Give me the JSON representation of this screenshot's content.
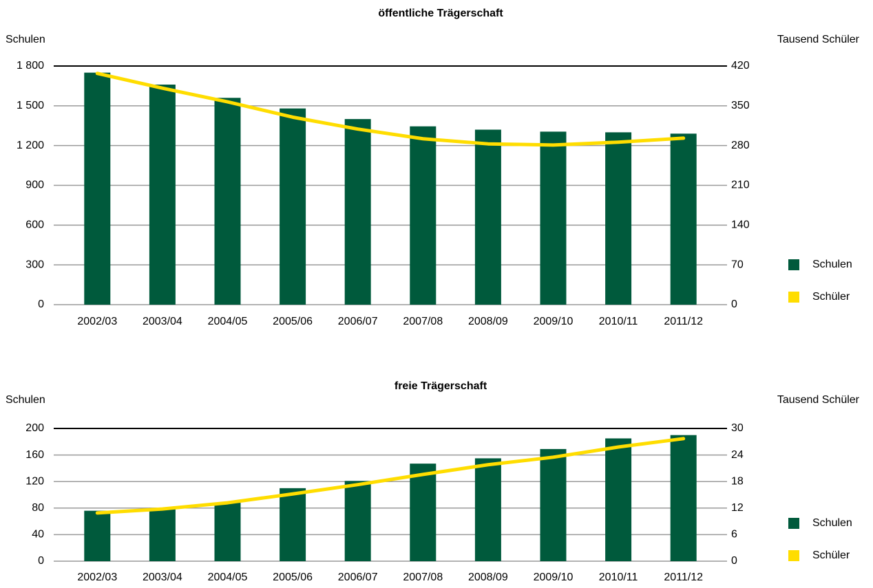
{
  "chart_data": [
    {
      "type": "bar",
      "title": "öffentliche Trägerschaft",
      "y_label": "Schulen",
      "y2_label": "Tausend Schüler",
      "categories": [
        "2002/03",
        "2003/04",
        "2004/05",
        "2005/06",
        "2006/07",
        "2007/08",
        "2008/09",
        "2009/10",
        "2010/11",
        "2011/12"
      ],
      "series": [
        {
          "name": "Schulen",
          "color": "#005a3c",
          "values": [
            1750,
            1660,
            1560,
            1480,
            1400,
            1345,
            1320,
            1305,
            1300,
            1290
          ]
        },
        {
          "name": "Schüler",
          "color": "#ffdd00",
          "axis": "y2",
          "values": [
            407,
            381,
            357,
            330,
            309,
            292,
            283,
            281,
            286,
            293
          ]
        }
      ],
      "ylim": [
        0,
        1800
      ],
      "yticks": [
        0,
        300,
        600,
        900,
        {
          "value": 1200,
          "label": "1 200"
        },
        {
          "value": 1500,
          "label": "1 500"
        },
        {
          "value": 1800,
          "label": "1 800"
        }
      ],
      "y2lim": [
        0,
        420
      ],
      "y2ticks": [
        0,
        70,
        140,
        210,
        280,
        350,
        420
      ],
      "grid": true,
      "legend": "right"
    },
    {
      "type": "bar",
      "title": "freie Trägerschaft",
      "y_label": "Schulen",
      "y2_label": "Tausend Schüler",
      "categories": [
        "2002/03",
        "2003/04",
        "2004/05",
        "2005/06",
        "2006/07",
        "2007/08",
        "2008/09",
        "2009/10",
        "2010/11",
        "2011/12"
      ],
      "series": [
        {
          "name": "Schulen",
          "color": "#005a3c",
          "values": [
            76,
            80,
            88,
            110,
            121,
            147,
            155,
            169,
            185,
            190
          ]
        },
        {
          "name": "Schüler",
          "color": "#ffdd00",
          "axis": "y2",
          "values": [
            10.9,
            11.8,
            13.2,
            15.2,
            17.3,
            19.6,
            21.8,
            23.5,
            25.8,
            27.7
          ]
        }
      ],
      "ylim": [
        0,
        200
      ],
      "yticks": [
        0,
        40,
        80,
        120,
        160,
        200
      ],
      "y2lim": [
        0,
        30
      ],
      "y2ticks": [
        0,
        6,
        12,
        18,
        24,
        30
      ],
      "grid": true,
      "legend": "right"
    }
  ]
}
